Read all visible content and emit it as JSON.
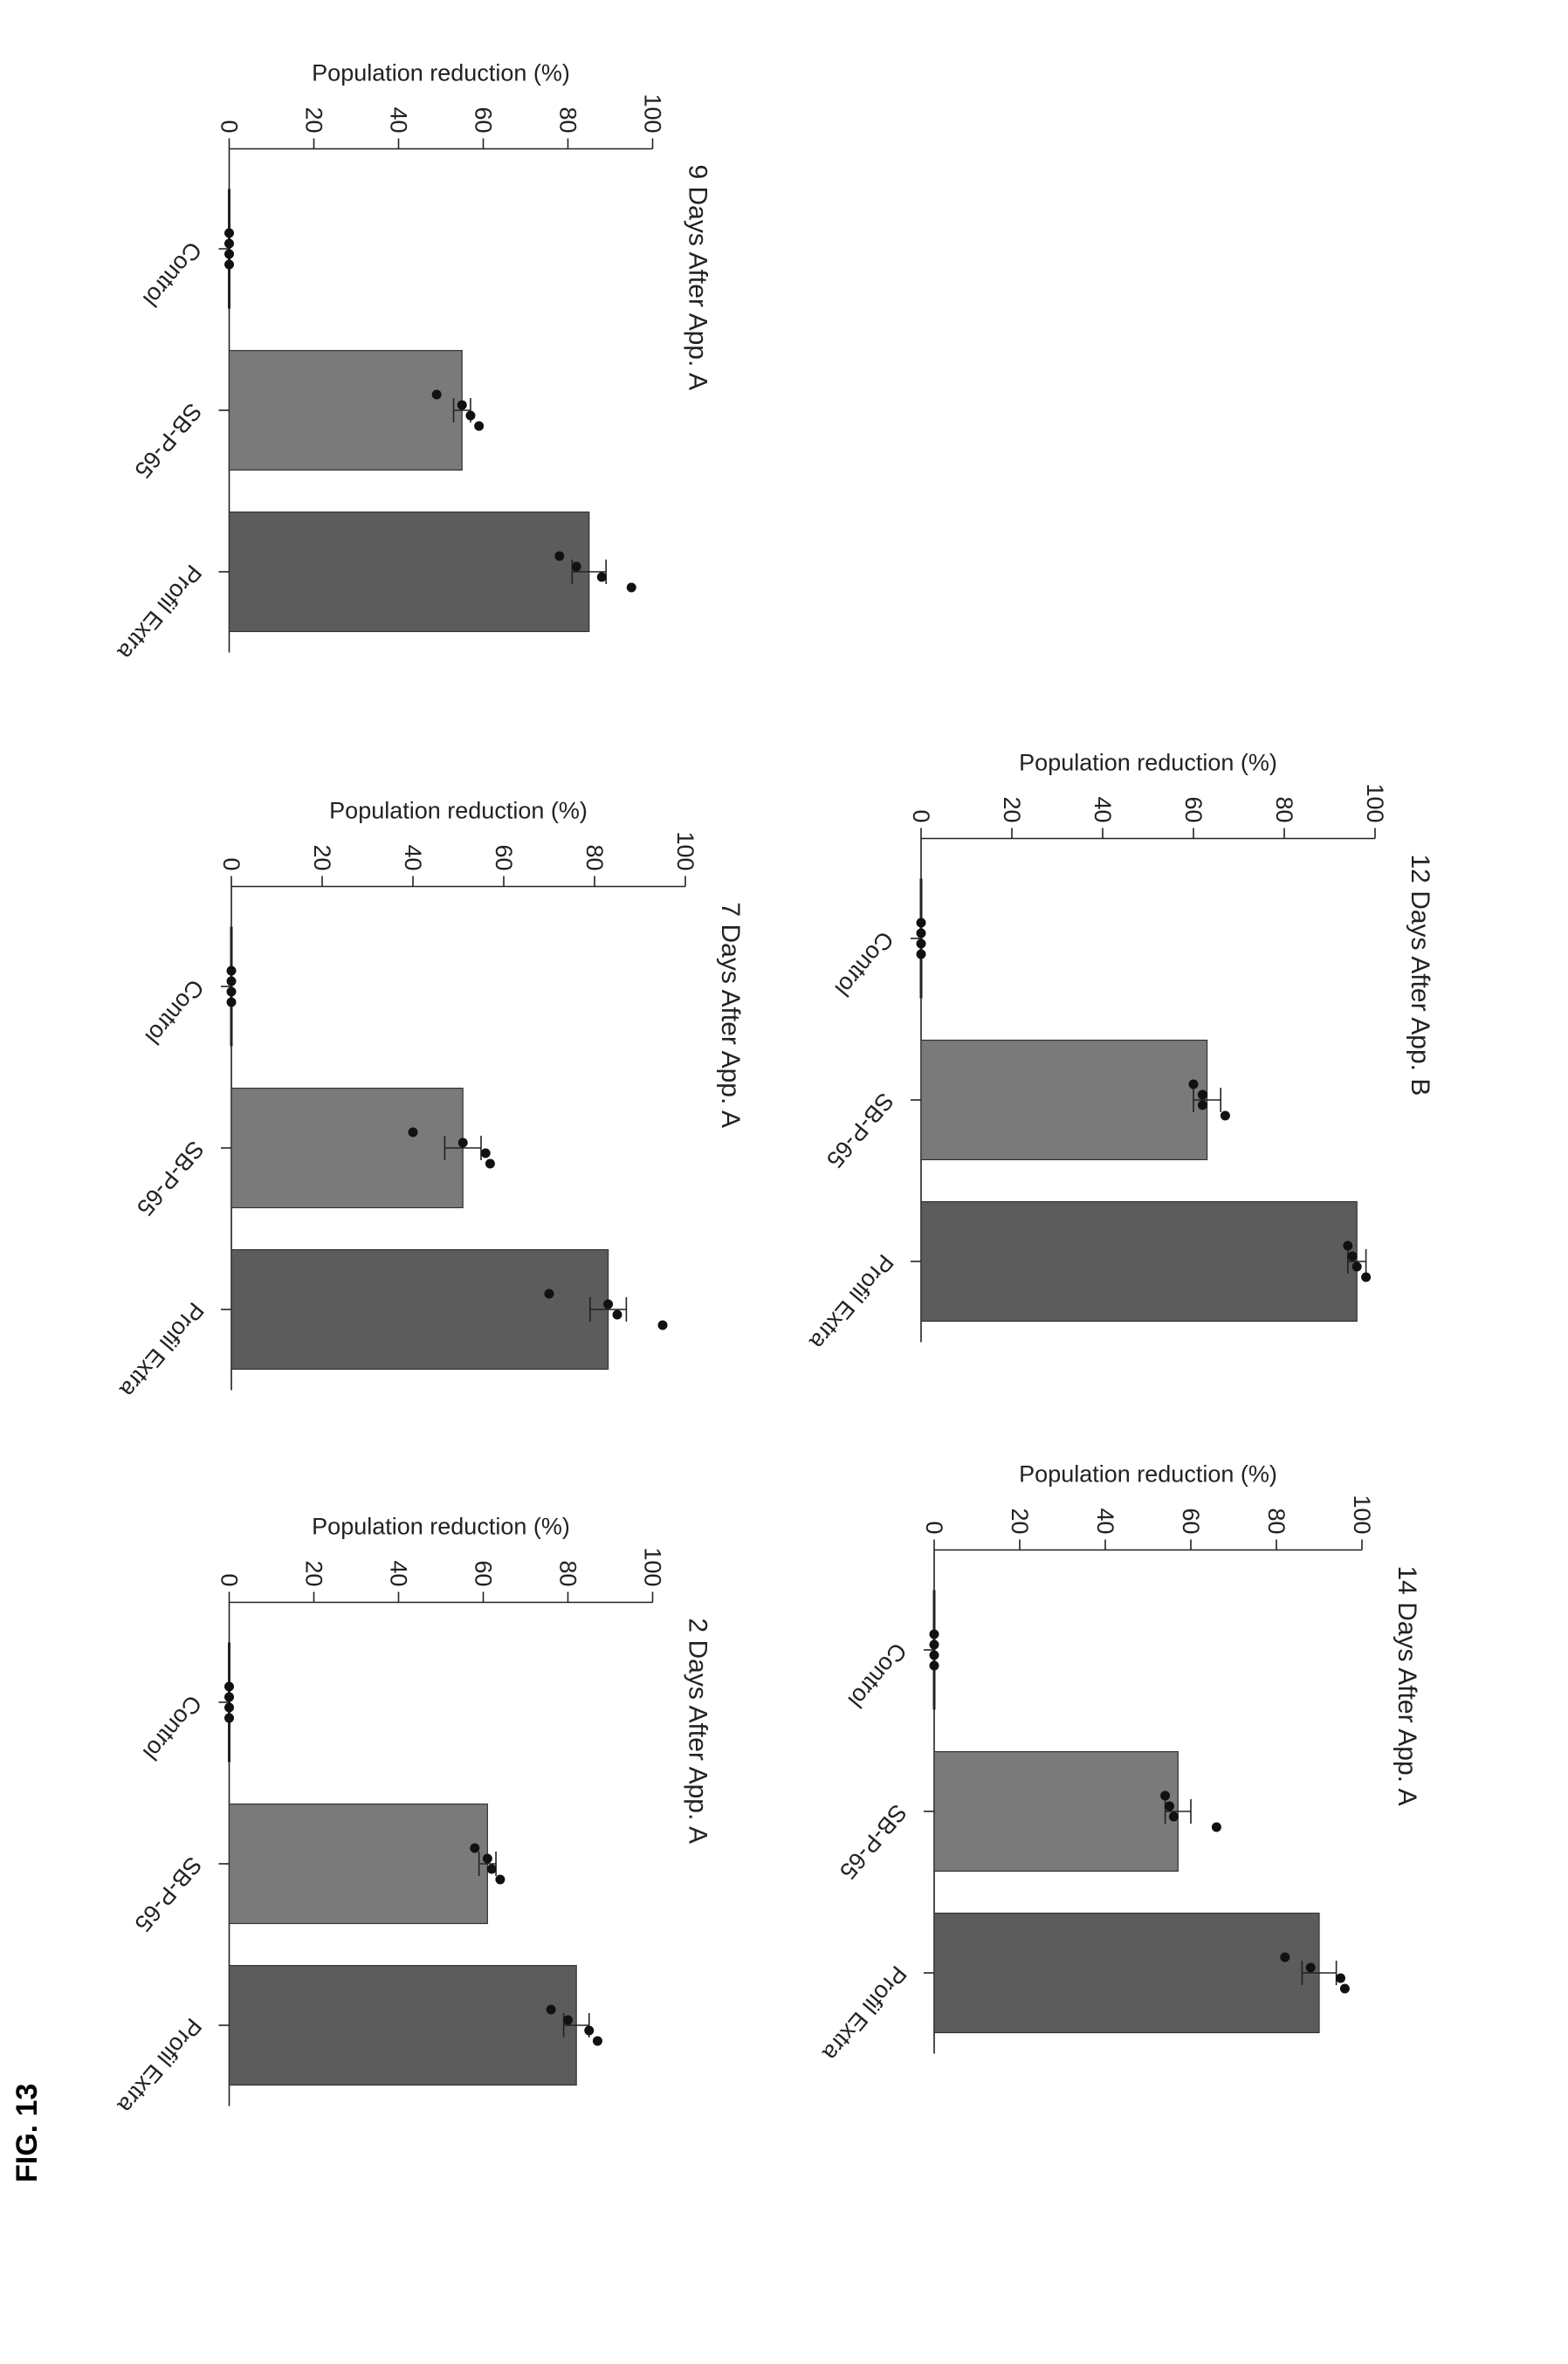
{
  "figure_label": "FIG. 13",
  "chart_data": [
    {
      "type": "bar",
      "title": "2 Days After  App.  A",
      "ylabel": "Population reduction (%)",
      "xlabel": "",
      "ylim": [
        0,
        100
      ],
      "yticks": [
        0,
        20,
        40,
        60,
        80,
        100
      ],
      "categories": [
        "Control",
        "SB-P-65",
        "Profil Extra"
      ],
      "values": [
        0,
        61,
        82
      ],
      "error": [
        0,
        2,
        3
      ],
      "points": [
        [
          0,
          0,
          0,
          0
        ],
        [
          58,
          61,
          62,
          64
        ],
        [
          76,
          80,
          85,
          87
        ]
      ],
      "colors": [
        "#555555",
        "#7a7a7a",
        "#5c5c5c"
      ]
    },
    {
      "type": "bar",
      "title": "7 Days After  App.  A",
      "ylabel": "Population reduction (%)",
      "xlabel": "",
      "ylim": [
        0,
        100
      ],
      "yticks": [
        0,
        20,
        40,
        60,
        80,
        100
      ],
      "categories": [
        "Control",
        "SB-P-65",
        "Profil Extra"
      ],
      "values": [
        0,
        51,
        83
      ],
      "error": [
        0,
        4,
        4
      ],
      "points": [
        [
          0,
          0,
          0,
          0
        ],
        [
          40,
          51,
          56,
          57
        ],
        [
          70,
          83,
          85,
          95
        ]
      ],
      "colors": [
        "#555555",
        "#7a7a7a",
        "#5c5c5c"
      ]
    },
    {
      "type": "bar",
      "title": "9 Days After  App.  A",
      "ylabel": "Population reduction (%)",
      "xlabel": "",
      "ylim": [
        0,
        100
      ],
      "yticks": [
        0,
        20,
        40,
        60,
        80,
        100
      ],
      "categories": [
        "Control",
        "SB-P-65",
        "Profil Extra"
      ],
      "values": [
        0,
        55,
        85
      ],
      "error": [
        0,
        2,
        4
      ],
      "points": [
        [
          0,
          0,
          0,
          0
        ],
        [
          49,
          55,
          57,
          59
        ],
        [
          78,
          82,
          88,
          95
        ]
      ],
      "colors": [
        "#555555",
        "#7a7a7a",
        "#5c5c5c"
      ]
    },
    {
      "type": "bar",
      "title": "14 Days After  App.  A",
      "ylabel": "Population reduction (%)",
      "xlabel": "",
      "ylim": [
        0,
        100
      ],
      "yticks": [
        0,
        20,
        40,
        60,
        80,
        100
      ],
      "categories": [
        "Control",
        "SB-P-65",
        "Profil Extra"
      ],
      "values": [
        0,
        57,
        90
      ],
      "error": [
        0,
        3,
        4
      ],
      "points": [
        [
          0,
          0,
          0,
          0
        ],
        [
          54,
          55,
          56,
          66
        ],
        [
          82,
          88,
          95,
          96
        ]
      ],
      "colors": [
        "#555555",
        "#7a7a7a",
        "#5c5c5c"
      ]
    },
    {
      "type": "bar",
      "title": "12 Days After  App.  B",
      "ylabel": "Population reduction (%)",
      "xlabel": "",
      "ylim": [
        0,
        100
      ],
      "yticks": [
        0,
        20,
        40,
        60,
        80,
        100
      ],
      "categories": [
        "Control",
        "SB-P-65",
        "Profil Extra"
      ],
      "values": [
        0,
        63,
        96
      ],
      "error": [
        0,
        3,
        2
      ],
      "points": [
        [
          0,
          0,
          0,
          0
        ],
        [
          60,
          62,
          62,
          67
        ],
        [
          94,
          95,
          96,
          98
        ]
      ],
      "colors": [
        "#555555",
        "#7a7a7a",
        "#5c5c5c"
      ]
    }
  ]
}
